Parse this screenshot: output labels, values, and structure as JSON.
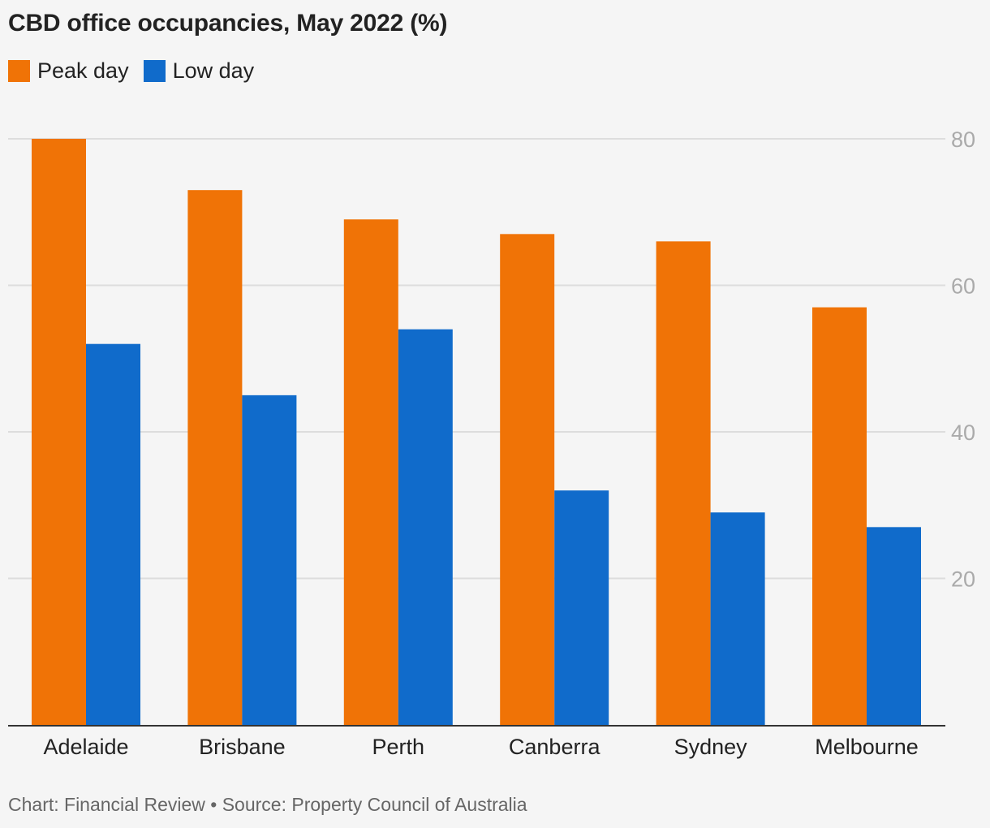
{
  "title": "CBD office occupancies, May 2022 (%)",
  "footer": "Chart: Financial Review • Source: Property Council of Australia",
  "colors": {
    "peak": "#f07306",
    "low": "#106bcb",
    "grid": "#dddddd",
    "axis": "#333333",
    "tick_text": "#aaaaaa",
    "category_text": "#222222"
  },
  "chart_data": {
    "type": "bar",
    "categories": [
      "Adelaide",
      "Brisbane",
      "Perth",
      "Canberra",
      "Sydney",
      "Melbourne"
    ],
    "series": [
      {
        "name": "Peak day",
        "values": [
          80,
          73,
          69,
          67,
          66,
          57
        ]
      },
      {
        "name": "Low day",
        "values": [
          52,
          45,
          54,
          32,
          29,
          27
        ]
      }
    ],
    "ylim": [
      0,
      80
    ],
    "yticks": [
      20,
      40,
      60,
      80
    ],
    "ytick_labels": [
      "20",
      "40",
      "60",
      "80"
    ],
    "y_axis_position": "right",
    "grid": true,
    "legend_position": "top-left"
  }
}
